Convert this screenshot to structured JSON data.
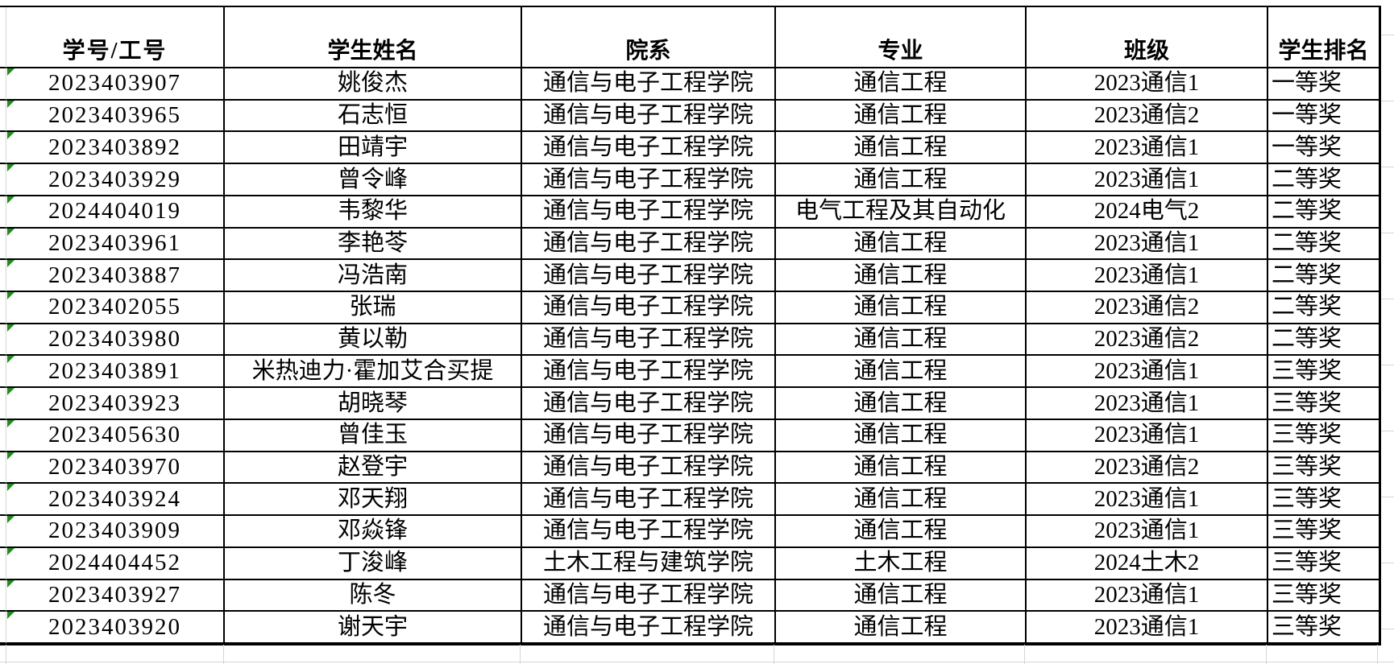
{
  "sheet": {
    "columns": [
      "学号/工号",
      "学生姓名",
      "院系",
      "专业",
      "班级",
      "学生排名"
    ],
    "rows": [
      [
        "2023403907",
        "姚俊杰",
        "通信与电子工程学院",
        "通信工程",
        "2023通信1",
        "一等奖"
      ],
      [
        "2023403965",
        "石志恒",
        "通信与电子工程学院",
        "通信工程",
        "2023通信2",
        "一等奖"
      ],
      [
        "2023403892",
        "田靖宇",
        "通信与电子工程学院",
        "通信工程",
        "2023通信1",
        "一等奖"
      ],
      [
        "2023403929",
        "曾令峰",
        "通信与电子工程学院",
        "通信工程",
        "2023通信1",
        "二等奖"
      ],
      [
        "2024404019",
        "韦黎华",
        "通信与电子工程学院",
        "电气工程及其自动化",
        "2024电气2",
        "二等奖"
      ],
      [
        "2023403961",
        "李艳苓",
        "通信与电子工程学院",
        "通信工程",
        "2023通信1",
        "二等奖"
      ],
      [
        "2023403887",
        "冯浩南",
        "通信与电子工程学院",
        "通信工程",
        "2023通信1",
        "二等奖"
      ],
      [
        "2023402055",
        "张瑞",
        "通信与电子工程学院",
        "通信工程",
        "2023通信2",
        "二等奖"
      ],
      [
        "2023403980",
        "黄以勒",
        "通信与电子工程学院",
        "通信工程",
        "2023通信2",
        "二等奖"
      ],
      [
        "2023403891",
        "米热迪力·霍加艾合买提",
        "通信与电子工程学院",
        "通信工程",
        "2023通信1",
        "三等奖"
      ],
      [
        "2023403923",
        "胡晓琴",
        "通信与电子工程学院",
        "通信工程",
        "2023通信1",
        "三等奖"
      ],
      [
        "2023405630",
        "曾佳玉",
        "通信与电子工程学院",
        "通信工程",
        "2023通信1",
        "三等奖"
      ],
      [
        "2023403970",
        "赵登宇",
        "通信与电子工程学院",
        "通信工程",
        "2023通信2",
        "三等奖"
      ],
      [
        "2023403924",
        "邓天翔",
        "通信与电子工程学院",
        "通信工程",
        "2023通信1",
        "三等奖"
      ],
      [
        "2023403909",
        "邓焱锋",
        "通信与电子工程学院",
        "通信工程",
        "2023通信1",
        "三等奖"
      ],
      [
        "2024404452",
        "丁浚峰",
        "土木工程与建筑学院",
        "土木工程",
        "2024土木2",
        "三等奖"
      ],
      [
        "2023403927",
        "陈冬",
        "通信与电子工程学院",
        "通信工程",
        "2023通信1",
        "三等奖"
      ],
      [
        "2023403920",
        "谢天宇",
        "通信与电子工程学院",
        "通信工程",
        "2023通信1",
        "三等奖"
      ]
    ],
    "error_indicator": {
      "icon": "green-triangle",
      "color": "#1e8c1e",
      "applies_to": "every data cell in the 学号/工号 column"
    }
  },
  "colors": {
    "background": "#ffffff",
    "text": "#000000",
    "table_border": "#000000",
    "sheet_gridline": "#d6d6d6",
    "error_indicator_green": "#1e8c1e"
  }
}
